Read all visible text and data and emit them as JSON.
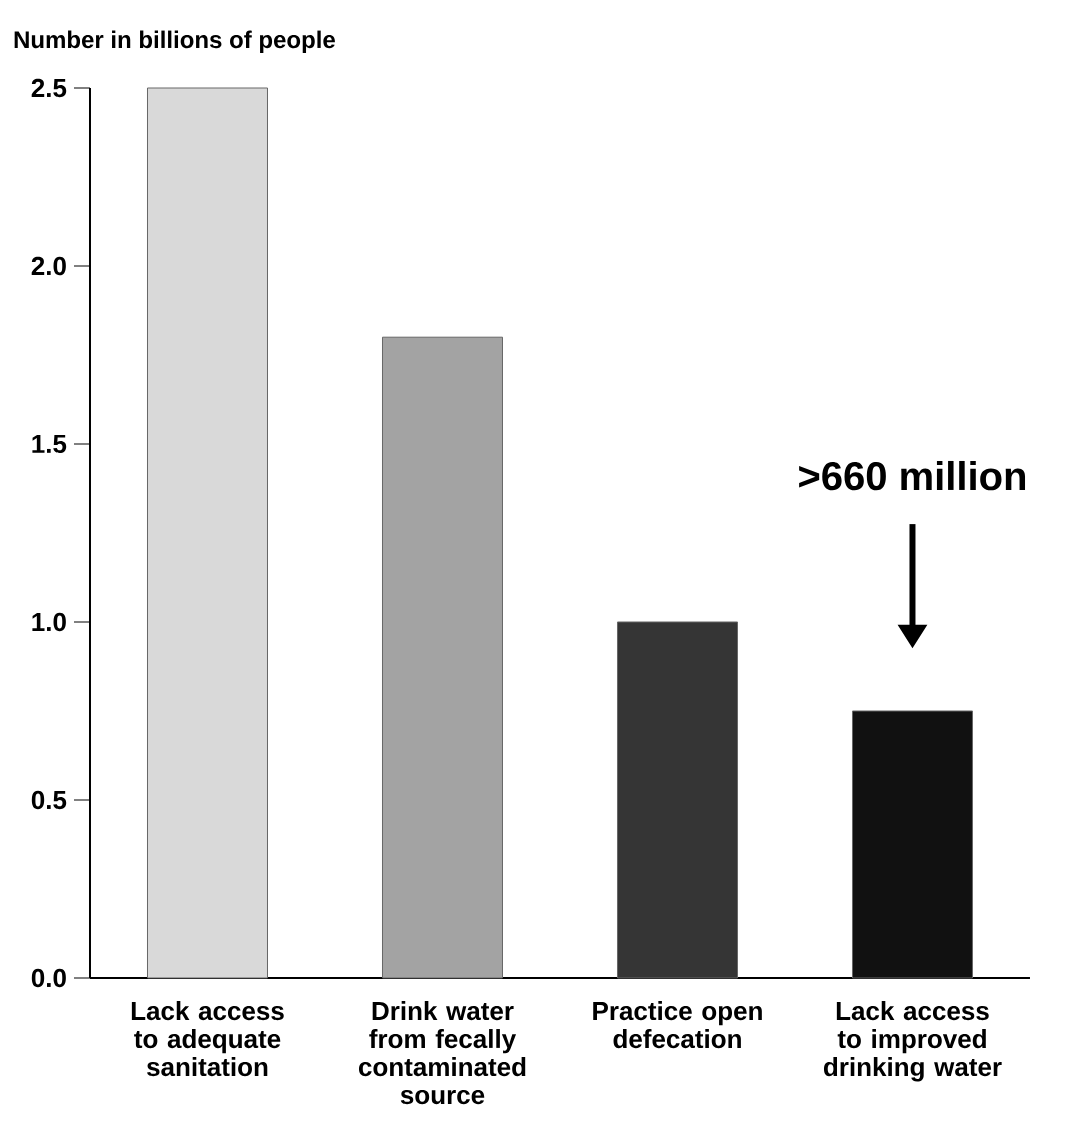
{
  "chart_data": {
    "type": "bar",
    "ylabel": "Number in billions of people",
    "categories": [
      "Lack access to adequate sanitation",
      "Drink water from fecally contaminated source",
      "Practice open defecation",
      "Lack access to improved drinking water"
    ],
    "values": [
      2.5,
      1.8,
      1.0,
      0.75
    ],
    "colors": [
      "#d9d9d9",
      "#a3a3a3",
      "#353535",
      "#111111"
    ],
    "ylim": [
      0,
      2.5
    ],
    "yticks": [
      {
        "value": 0,
        "label": "0.0"
      },
      0.5,
      {
        "value": 1,
        "label": "1.0"
      },
      1.5,
      {
        "value": 2,
        "label": "2.0"
      },
      2.5
    ],
    "annotations": [
      ">660 million"
    ]
  }
}
